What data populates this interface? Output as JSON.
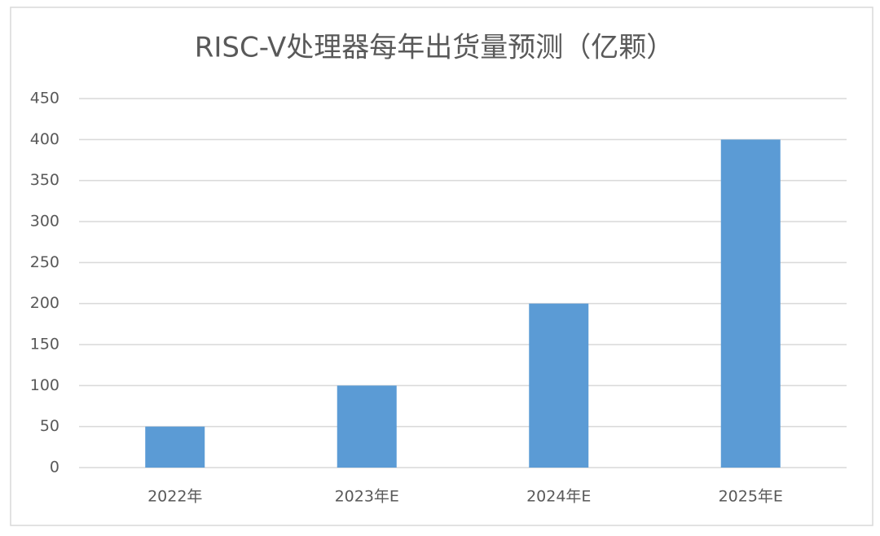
{
  "chart_data": {
    "type": "bar",
    "title": "RISC-V处理器每年出货量预测（亿颗）",
    "categories": [
      "2022年",
      "2023年E",
      "2024年E",
      "2025年E"
    ],
    "values": [
      50,
      100,
      200,
      400
    ],
    "color": "#5b9bd5",
    "ylim": [
      0,
      450
    ],
    "yticks": [
      0,
      50,
      100,
      150,
      200,
      250,
      300,
      350,
      400,
      450
    ],
    "grid": true
  }
}
